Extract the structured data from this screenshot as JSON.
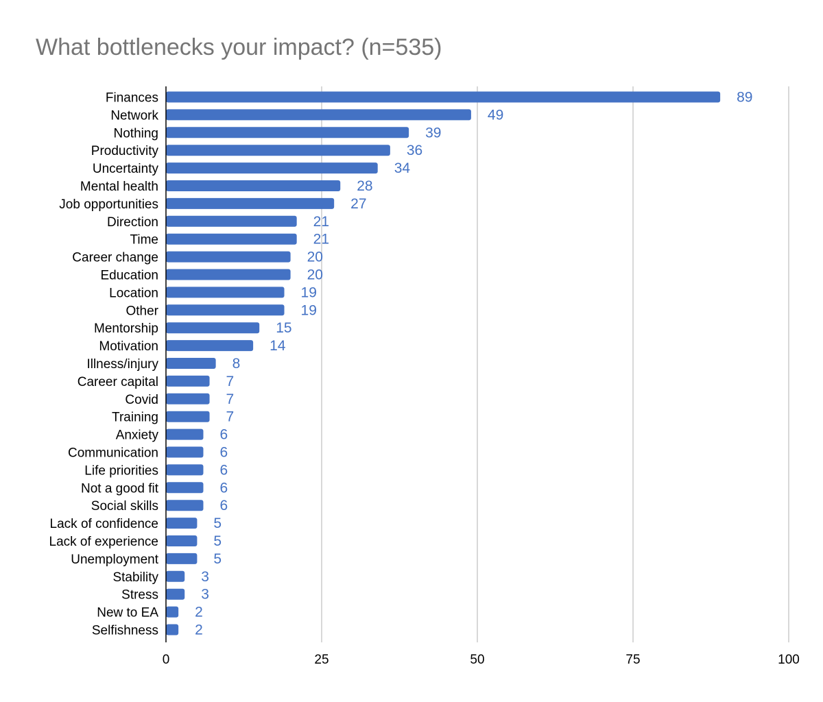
{
  "chart_data": {
    "type": "bar",
    "orientation": "horizontal",
    "title": "What bottlenecks your impact? (n=535)",
    "xlabel": "",
    "ylabel": "",
    "xlim": [
      0,
      100
    ],
    "xticks": [
      "0",
      "25",
      "50",
      "75",
      "100"
    ],
    "grid": true,
    "legend": "none",
    "data_labels": true,
    "categories": [
      "Finances",
      "Network",
      "Nothing",
      "Productivity",
      "Uncertainty",
      "Mental health",
      "Job opportunities",
      "Direction",
      "Time",
      "Career change",
      "Education",
      "Location",
      "Other",
      "Mentorship",
      "Motivation",
      "Illness/injury",
      "Career capital",
      "Covid",
      "Training",
      "Anxiety",
      "Communication",
      "Life priorities",
      "Not a good fit",
      "Social skills",
      "Lack of confidence",
      "Lack of experience",
      "Unemployment",
      "Stability",
      "Stress",
      "New to EA",
      "Selfishness"
    ],
    "values": [
      89,
      49,
      39,
      36,
      34,
      28,
      27,
      21,
      21,
      20,
      20,
      19,
      19,
      15,
      14,
      8,
      7,
      7,
      7,
      6,
      6,
      6,
      6,
      6,
      5,
      5,
      5,
      3,
      3,
      2,
      2
    ],
    "colors": {
      "bar": "#4472c4",
      "data_label": "#4472c4",
      "title": "#757575",
      "category_label": "#000000",
      "tick_label": "#000000",
      "grid": "#cccccc",
      "axis": "#000000"
    }
  }
}
